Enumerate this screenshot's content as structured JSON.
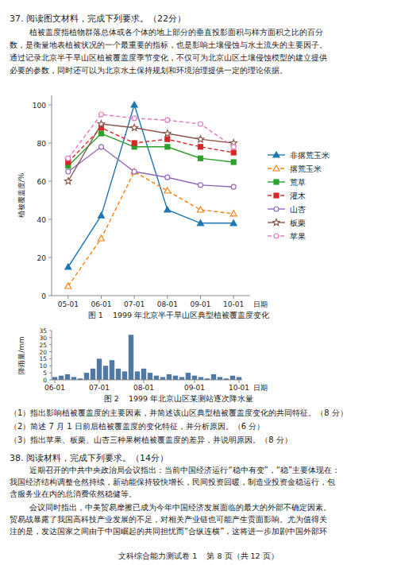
{
  "page_title": "37. 阅读图文材料，完成下列要求。（22分）",
  "paragraph_1": [
    "        植被盖度指植物群落总体或各个体的地上部分的垂直投影面积与样方面积之比的百分",
    "数，是衡量地表植被状况的一个最重要的指标，也是影响土壤侵蚀与水土流失的主要因子。",
    "通过记录北京半干旱山区植被覆盖度季节变化，不仅可为北京山区土壤侵蚀模型的建立提供",
    "必要的参数，同时还可以为北京水土保持规划和环境治理提供一定的理论依据。"
  ],
  "chart_data": [
    {
      "type": "line",
      "title": "图 1    1999 年北京半干旱山区典型植被覆盖度变化",
      "x_label": "日期",
      "y_label": "植被覆盖度/%",
      "categories": [
        "05-01",
        "06-01",
        "07-01",
        "08-01",
        "09-01",
        "10-01"
      ],
      "series": [
        {
          "name": "非撂荒玉米",
          "color": "#1f77b4",
          "marker": "triangle",
          "line_style": "solid",
          "values": [
            15,
            42,
            100,
            45,
            38,
            38
          ]
        },
        {
          "name": "撂荒玉米",
          "color": "#ff7f0e",
          "marker": "triangle-open",
          "line_style": "dashed",
          "values": [
            5,
            30,
            65,
            55,
            45,
            43
          ]
        },
        {
          "name": "荒草",
          "color": "#2ca02c",
          "marker": "square",
          "line_style": "solid",
          "values": [
            68,
            85,
            78,
            78,
            72,
            70
          ]
        },
        {
          "name": "灌木",
          "color": "#d62728",
          "marker": "square",
          "line_style": "dashed",
          "values": [
            70,
            88,
            80,
            82,
            78,
            75
          ]
        },
        {
          "name": "山杏",
          "color": "#9467bd",
          "marker": "circle-open",
          "line_style": "solid",
          "values": [
            65,
            78,
            65,
            62,
            58,
            57
          ]
        },
        {
          "name": "板栗",
          "color": "#8c564b",
          "marker": "star-open",
          "line_style": "solid",
          "values": [
            60,
            90,
            88,
            85,
            82,
            80
          ]
        },
        {
          "name": "苹果",
          "color": "#e377c2",
          "marker": "circle-open",
          "line_style": "dashed",
          "values": [
            72,
            95,
            93,
            92,
            90,
            78
          ]
        }
      ],
      "ylim": [
        0,
        105
      ],
      "yticks": [
        0,
        20,
        40,
        60,
        80,
        100
      ],
      "grid": false,
      "legend": "right"
    },
    {
      "type": "bar",
      "title": "图 2    1999 年北京山区某测站逐次降水量",
      "x_label": "日期",
      "y_label": "降雨量/mm",
      "categories": [
        "06-01",
        null,
        null,
        null,
        null,
        null,
        null,
        "07-01",
        null,
        null,
        null,
        null,
        null,
        null,
        "08-01",
        null,
        null,
        null,
        null,
        null,
        null,
        null,
        "09-01",
        null,
        null,
        null,
        null,
        null,
        null,
        "10-01"
      ],
      "values": [
        2,
        3,
        4,
        2,
        1,
        5,
        8,
        15,
        10,
        14,
        8,
        6,
        32,
        6,
        8,
        5,
        3,
        2,
        4,
        3,
        2,
        5,
        3,
        2,
        1,
        4,
        2,
        1,
        3,
        2
      ],
      "color": "#4e79a7",
      "ylim": [
        0,
        35
      ],
      "yticks": [
        0,
        5,
        10,
        15,
        20,
        25,
        30,
        35
      ],
      "grid": false
    }
  ],
  "questions": [
    "（1）指出影响植被覆盖度的主要因素，并简述该山区典型植被覆盖度变化的共同特征。（8 分）",
    "（2）简述 7 月 1 日前后植被覆盖度的变化特征，并分析原因。（6 分）",
    "（3）指出苹果、板栗、山杏三种果树植被覆盖度的差异，并说明原因。（8 分）"
  ],
  "section_2_title": "38. 阅读材料，完成下列要求。（14分）",
  "paragraph_2": [
    "        近期召开的中共中央政治局会议指出：当前中国经济运行“稳中有变”，“稳”主要体现在：",
    "我国经济结构调整仓然持续，新动能保持较快增长，民间投资回暖，制造业投资金稳运行，包",
    "含服务业在内的总消费依然稳健等。"
  ],
  "paragraph_3": [
    "        会议同时指出，中美贸易摩擦已成为今年中国经济发展面临的最大的外部不确定因素。",
    "贸易战暴露了我国高科技产业发展的不足，对相关产业链也可能产生贡面影响。尤为值得关",
    "注的是，发达国家之间由于中国崛起的共同担忧而“合纵连横”，这将进一步加剧中国外部环"
  ],
  "footer": "文科综合能力测试卷 1    第 8 页（共 12 页）"
}
